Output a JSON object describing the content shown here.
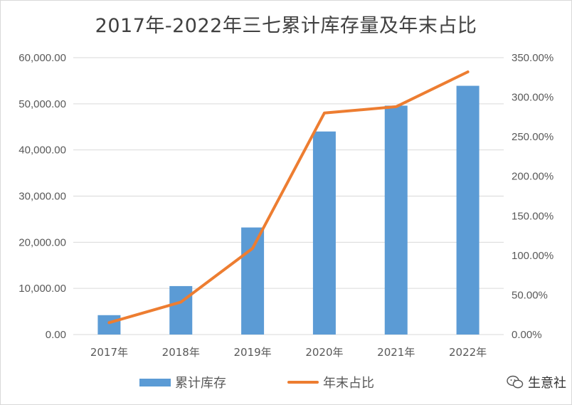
{
  "chart_data": {
    "type": "bar",
    "title": "2017年-2022年三七累计库存量及年末占比",
    "categories": [
      "2017年",
      "2018年",
      "2019年",
      "2020年",
      "2021年",
      "2022年"
    ],
    "series": [
      {
        "name": "累计库存",
        "type": "bar",
        "axis": "left",
        "color": "#5b9bd5",
        "values": [
          4200,
          10500,
          23200,
          44000,
          49600,
          53900
        ]
      },
      {
        "name": "年末占比",
        "type": "line",
        "axis": "right",
        "color": "#ed7d31",
        "values": [
          15.0,
          41.0,
          109.0,
          280.0,
          288.0,
          332.0
        ]
      }
    ],
    "ylim_left": [
      0,
      60000
    ],
    "yticks_left": [
      "0.00",
      "10,000.00",
      "20,000.00",
      "30,000.00",
      "40,000.00",
      "50,000.00",
      "60,000.00"
    ],
    "ylim_right": [
      0,
      350
    ],
    "yticks_right": [
      "0.00%",
      "50.00%",
      "100.00%",
      "150.00%",
      "200.00%",
      "250.00%",
      "300.00%",
      "350.00%"
    ],
    "grid": true,
    "legend_position": "bottom"
  },
  "legend": {
    "bar_label": "累计库存",
    "line_label": "年末占比"
  },
  "watermark": {
    "text": "生意社",
    "icon": "wechat-icon"
  }
}
